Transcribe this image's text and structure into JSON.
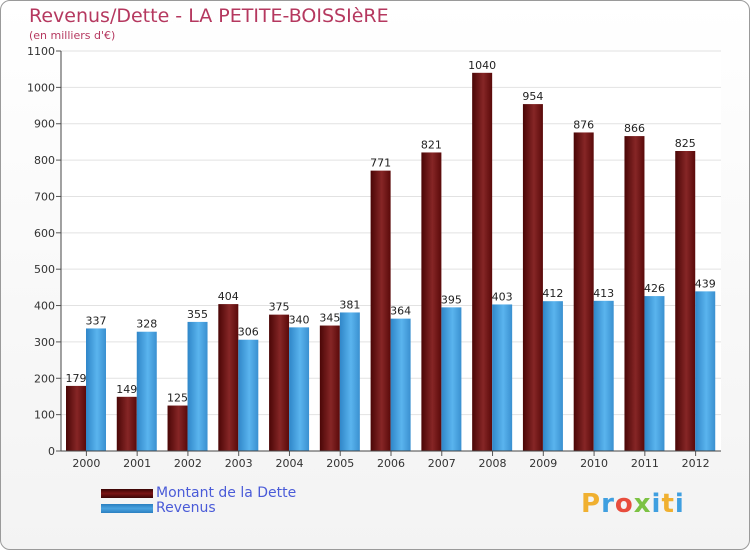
{
  "header": {
    "title": "Revenus/Dette - LA PETITE-BOISSIèRE",
    "subtitle": "(en milliers d'€)"
  },
  "colors": {
    "title": "#b5385f",
    "dette": "#7a1414",
    "revenus": "#4aa3e0",
    "legend_text": "#4a5bd8"
  },
  "logo": {
    "text": "Proxiti",
    "letter_colors": [
      "#f0b030",
      "#3f9fe0",
      "#e84d3d",
      "#7cc243",
      "#3f9fe0",
      "#f0b030",
      "#3f9fe0"
    ]
  },
  "legend": [
    {
      "label": "Montant de la Dette",
      "color": "#7a1414"
    },
    {
      "label": "Revenus",
      "color": "#4aa3e0"
    }
  ],
  "chart_data": {
    "type": "bar",
    "categories": [
      "2000",
      "2001",
      "2002",
      "2003",
      "2004",
      "2005",
      "2006",
      "2007",
      "2008",
      "2009",
      "2010",
      "2011",
      "2012"
    ],
    "series": [
      {
        "name": "Montant de la Dette",
        "values": [
          179,
          149,
          125,
          404,
          375,
          345,
          771,
          821,
          1040,
          954,
          876,
          866,
          825
        ]
      },
      {
        "name": "Revenus",
        "values": [
          337,
          328,
          355,
          306,
          340,
          381,
          364,
          395,
          403,
          412,
          413,
          426,
          439
        ]
      }
    ],
    "yticks": [
      0,
      100,
      200,
      300,
      400,
      500,
      600,
      700,
      800,
      900,
      1000,
      1100
    ],
    "ylim": [
      0,
      1100
    ],
    "grid": true,
    "legend_position": "bottom-left"
  }
}
